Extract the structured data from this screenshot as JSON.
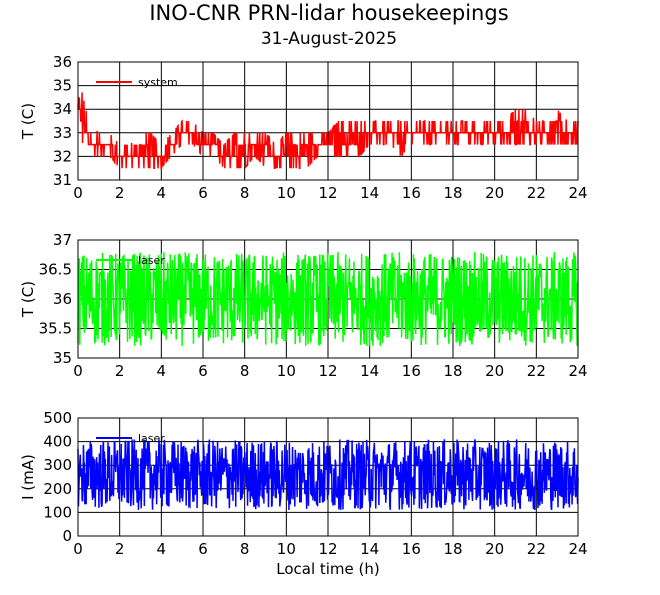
{
  "title": "INO-CNR PRN-lidar housekeepings",
  "subtitle": "31-August-2025",
  "chart_data": [
    {
      "type": "line",
      "ylabel": "T (C)",
      "xlabel": "",
      "xlim": [
        0,
        24
      ],
      "ylim": [
        31,
        36
      ],
      "xticks": [
        "0",
        "2",
        "4",
        "6",
        "8",
        "10",
        "12",
        "14",
        "16",
        "18",
        "20",
        "22",
        "24"
      ],
      "yticks": [
        "31",
        "32",
        "33",
        "34",
        "35",
        "36"
      ],
      "grid": true,
      "legend_position": "top-left",
      "series": [
        {
          "name": "system",
          "color": "#ff0000",
          "x": [
            0,
            0.5,
            1,
            1.5,
            2,
            2.5,
            3,
            3.5,
            4,
            4.5,
            5,
            5.5,
            6,
            6.5,
            7,
            7.5,
            8,
            8.5,
            9,
            9.5,
            10,
            10.5,
            11,
            11.5,
            12,
            12.5,
            13,
            13.5,
            14,
            14.5,
            15,
            15.5,
            16,
            16.5,
            17,
            17.5,
            18,
            18.5,
            19,
            19.5,
            20,
            20.5,
            21,
            21.5,
            22,
            22.5,
            23,
            23.5,
            24
          ],
          "low": [
            33,
            32,
            32,
            32,
            31.5,
            31.5,
            31.5,
            31.5,
            31.5,
            32,
            32.5,
            32.5,
            32,
            32,
            31.5,
            31.5,
            31.5,
            32,
            31.5,
            31.5,
            31.5,
            31.5,
            31.5,
            32,
            32,
            32,
            32,
            32,
            32.5,
            32.5,
            32.5,
            32,
            32.5,
            32.5,
            32.5,
            32.5,
            32.5,
            32.5,
            32.5,
            32.5,
            32.5,
            32.5,
            32.5,
            32.5,
            32.5,
            32.5,
            32.5,
            32.5,
            32.5
          ],
          "high": [
            35.5,
            33.5,
            33,
            33,
            32.5,
            32.5,
            33,
            33,
            32.5,
            33,
            33.5,
            33.5,
            33,
            33,
            32.5,
            33,
            33,
            33,
            33,
            32.5,
            33,
            33,
            33,
            33,
            33,
            33.5,
            33.5,
            33.5,
            33.5,
            33.5,
            33.5,
            33.5,
            33.5,
            33.5,
            33.5,
            33.5,
            33.5,
            33.5,
            33.5,
            33.5,
            33.5,
            33.5,
            34,
            34,
            33.5,
            33.5,
            34,
            33.5,
            33.5
          ]
        }
      ]
    },
    {
      "type": "line",
      "ylabel": "T (C)",
      "xlabel": "",
      "xlim": [
        0,
        24
      ],
      "ylim": [
        35,
        37
      ],
      "xticks": [
        "0",
        "2",
        "4",
        "6",
        "8",
        "10",
        "12",
        "14",
        "16",
        "18",
        "20",
        "22",
        "24"
      ],
      "yticks": [
        "35",
        "35.5",
        "36",
        "36.5",
        "37"
      ],
      "grid": true,
      "legend_position": "top-left",
      "series": [
        {
          "name": "laser",
          "color": "#00ff00",
          "x": [
            0,
            2,
            4,
            6,
            8,
            10,
            12,
            14,
            16,
            18,
            20,
            22,
            24
          ],
          "low": [
            35.2,
            35.2,
            35.2,
            35.2,
            35.2,
            35.2,
            35.2,
            35.2,
            35.2,
            35.2,
            35.2,
            35.2,
            35.2
          ],
          "high": [
            36.8,
            36.8,
            36.8,
            36.8,
            36.8,
            36.8,
            36.8,
            36.8,
            36.8,
            36.8,
            36.8,
            36.8,
            36.8
          ]
        }
      ]
    },
    {
      "type": "line",
      "ylabel": "I (mA)",
      "xlabel": "Local time (h)",
      "xlim": [
        0,
        24
      ],
      "ylim": [
        0,
        500
      ],
      "xticks": [
        "0",
        "2",
        "4",
        "6",
        "8",
        "10",
        "12",
        "14",
        "16",
        "18",
        "20",
        "22",
        "24"
      ],
      "yticks": [
        "0",
        "100",
        "200",
        "300",
        "400",
        "500"
      ],
      "grid": true,
      "legend_position": "top-left",
      "series": [
        {
          "name": "laser",
          "color": "#0000ff",
          "x": [
            0,
            2,
            4,
            6,
            8,
            10,
            12,
            14,
            16,
            18,
            20,
            22,
            24
          ],
          "low": [
            110,
            110,
            110,
            110,
            110,
            110,
            110,
            110,
            110,
            110,
            110,
            110,
            110
          ],
          "high": [
            410,
            410,
            410,
            410,
            410,
            410,
            410,
            410,
            410,
            410,
            410,
            410,
            410
          ]
        }
      ]
    }
  ]
}
